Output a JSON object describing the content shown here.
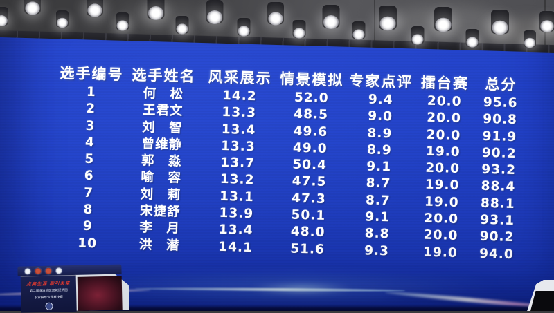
{
  "scoreboard": {
    "columns": [
      "选手编号",
      "选手姓名",
      "风采展示",
      "情景模拟",
      "专家点评",
      "擂台赛",
      "总分"
    ],
    "rows": [
      [
        "1",
        "何　松",
        "14.2",
        "52.0",
        "9.4",
        "20.0",
        "95.6"
      ],
      [
        "2",
        "王君文",
        "13.3",
        "48.5",
        "9.0",
        "20.0",
        "90.8"
      ],
      [
        "3",
        "刘　智",
        "13.4",
        "49.6",
        "8.9",
        "20.0",
        "91.9"
      ],
      [
        "4",
        "曾维静",
        "13.3",
        "49.0",
        "8.9",
        "19.0",
        "90.2"
      ],
      [
        "5",
        "郭　淼",
        "13.7",
        "50.4",
        "9.1",
        "20.0",
        "93.2"
      ],
      [
        "6",
        "喻　容",
        "13.2",
        "47.5",
        "8.7",
        "19.0",
        "88.4"
      ],
      [
        "7",
        "刘　莉",
        "13.1",
        "47.3",
        "8.7",
        "19.0",
        "88.1"
      ],
      [
        "8",
        "宋捷舒",
        "13.9",
        "50.1",
        "9.1",
        "20.0",
        "93.1"
      ],
      [
        "9",
        "李　月",
        "13.4",
        "48.0",
        "8.8",
        "20.0",
        "90.2"
      ],
      [
        "10",
        "洪　潜",
        "14.1",
        "51.6",
        "9.3",
        "19.0",
        "94.0"
      ]
    ]
  },
  "podium": {
    "slogan": "点亮生涯 职引未来",
    "subtitle_line1": "第二届成渝地区双城经济圈",
    "subtitle_line2": "职业指导专题赛决赛"
  },
  "colors": {
    "screen_blue": "#2141c7",
    "screen_blue_dark": "#142c97",
    "text_white": "#ffffff",
    "slogan_red": "#e03a2f"
  }
}
